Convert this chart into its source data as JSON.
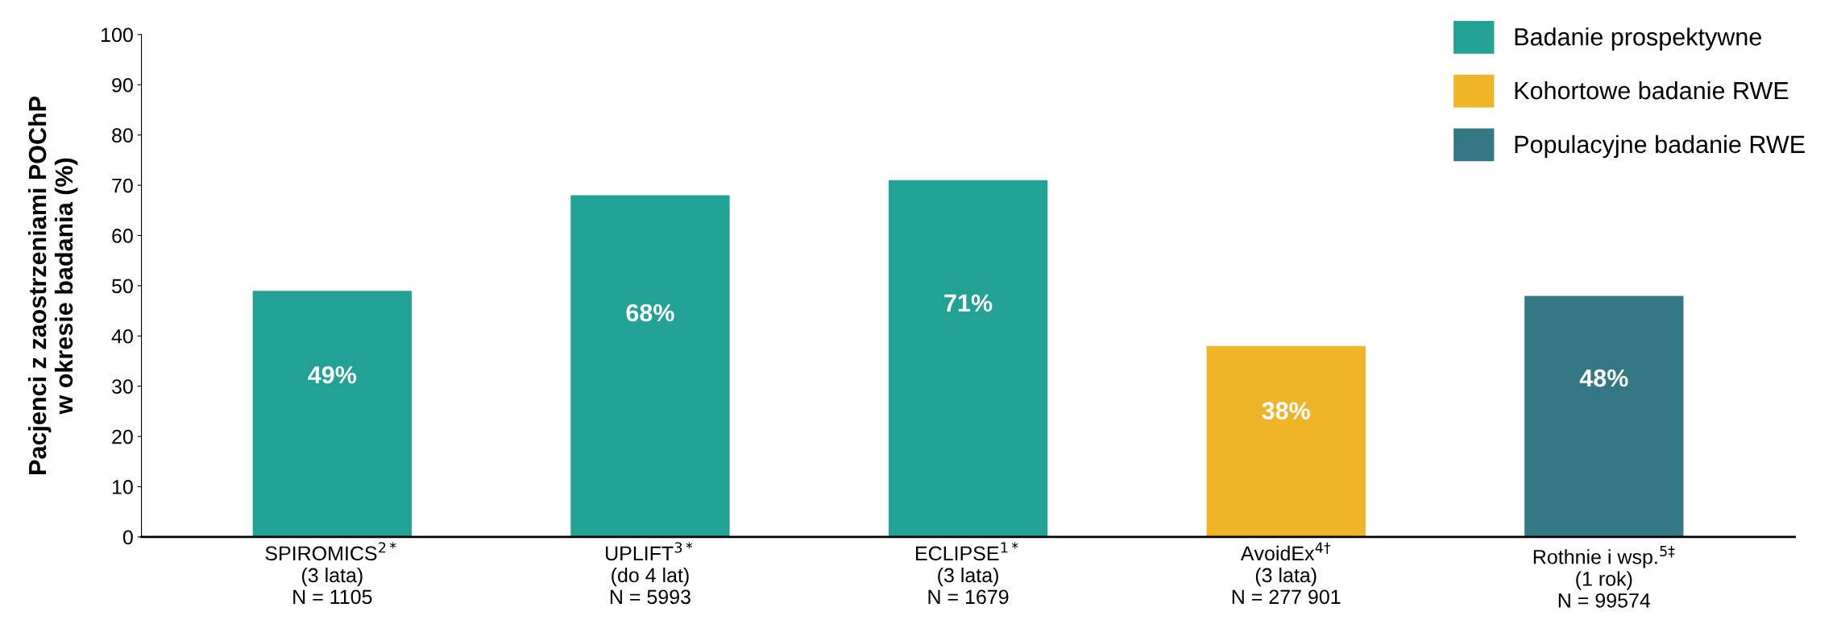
{
  "chart_data": {
    "type": "bar",
    "ylabel": "Pacjenci z zaostrzeniami POChP\nw okresie badania (%)",
    "categories": [
      "SPIROMICS$^{2*}$\n(3 lata)\nN = 1105",
      "UPLIFT$^{3*}$\n(do 4 lat)\nN = 5993",
      "ECLIPSE$^{1*}$\n(3 lata)\nN = 1679",
      "AvoidEx$^{4†}$\n(3 lata)\nN = 277 901",
      "Rothnie i wsp.$^{5‡}$\n(1 rok)\nN = 99574"
    ],
    "series": [
      {
        "name": "Badanie prospektywne",
        "color": "#22a195",
        "values": [
          49,
          68,
          71,
          null,
          null
        ],
        "value_labels": [
          "49%",
          "68%",
          "71%",
          null,
          null
        ]
      },
      {
        "name": "Kohortowe badanie RWE",
        "color": "#f0b428",
        "values": [
          null,
          null,
          null,
          38,
          null
        ],
        "value_labels": [
          null,
          null,
          null,
          "38%",
          null
        ]
      },
      {
        "name": "Populacyjne badanie RWE",
        "color": "#347785",
        "values": [
          null,
          null,
          null,
          null,
          48
        ],
        "value_labels": [
          null,
          null,
          null,
          null,
          "48%"
        ]
      }
    ],
    "ylim": [
      0,
      100
    ],
    "yticks": [
      0,
      10,
      20,
      30,
      40,
      50,
      60,
      70,
      80,
      90,
      100
    ],
    "grid": false,
    "legend": "top right"
  }
}
